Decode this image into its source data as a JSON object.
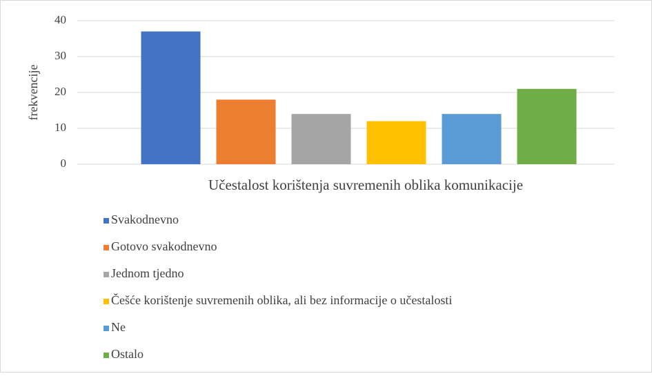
{
  "chart_data": {
    "type": "bar",
    "categories": [
      "Učestalost korištenja suvremenih oblika komunikacije"
    ],
    "y_label": "frekvencije",
    "series": [
      {
        "name": "Svakodnevno",
        "color": "#4472c4",
        "values": [
          37
        ]
      },
      {
        "name": "Gotovo svakodnevno",
        "color": "#ed7d31",
        "values": [
          18
        ]
      },
      {
        "name": "Jednom tjedno",
        "color": "#a5a5a5",
        "values": [
          14
        ]
      },
      {
        "name": "Češće korištenje suvremenih oblika, ali bez informacije o učestalosti",
        "color": "#ffc000",
        "values": [
          12
        ]
      },
      {
        "name": "Ne",
        "color": "#5b9bd5",
        "values": [
          14
        ]
      },
      {
        "name": "Ostalo",
        "color": "#70ad47",
        "values": [
          21
        ]
      }
    ],
    "ylim": [
      0,
      40
    ],
    "yticks": [
      0,
      10,
      20,
      30,
      40
    ],
    "grid": true,
    "legend": "bottom"
  }
}
